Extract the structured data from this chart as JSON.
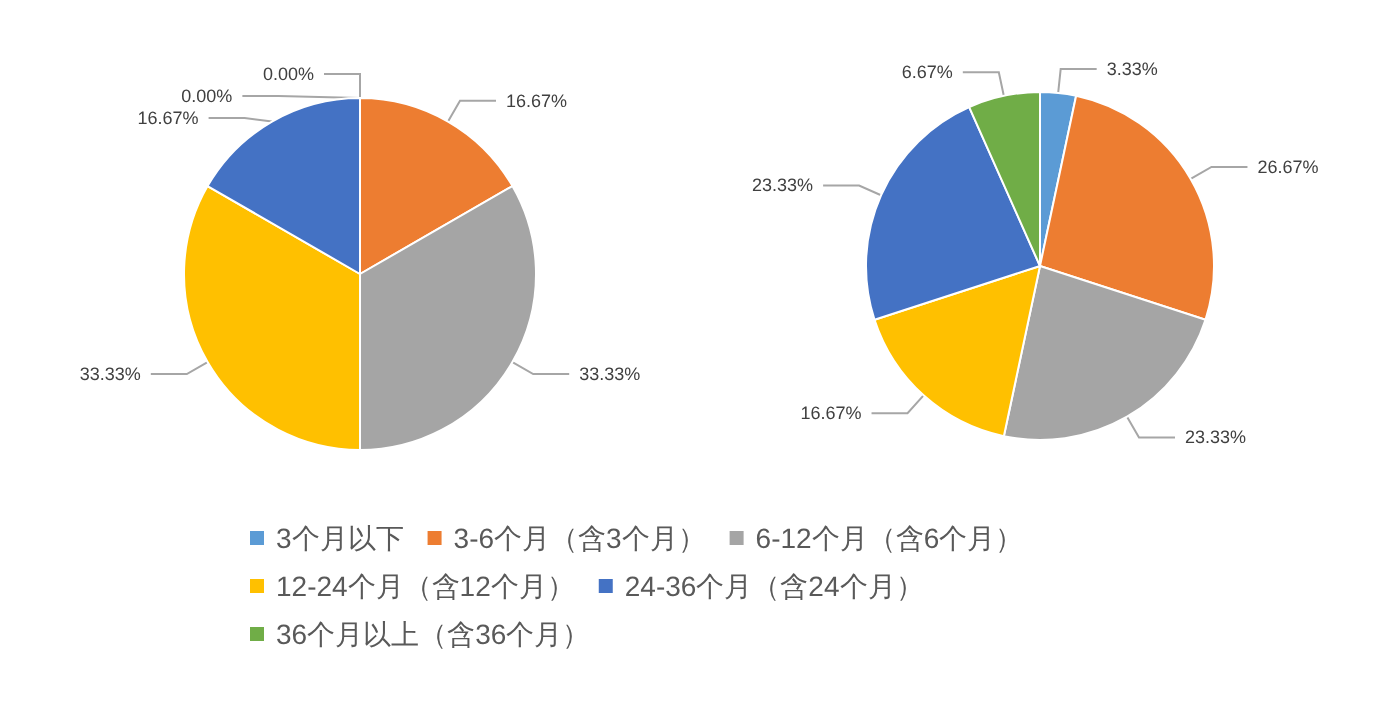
{
  "chart_data": {
    "type": "pie",
    "categories": [
      "3个月以下",
      "3-6个月（含3个月）",
      "6-12个月（含6个月）",
      "12-24个月（含12个月）",
      "24-36个月（含24个月）",
      "36个月以上（含36个月）"
    ],
    "colors": [
      "#5b9bd5",
      "#ed7d31",
      "#a5a5a5",
      "#ffc000",
      "#4472c4",
      "#70ad47"
    ],
    "legend": "bottom",
    "series": [
      {
        "values": [
          0,
          16.67,
          33.33,
          33.33,
          16.67,
          0
        ],
        "value_labels": [
          "0.00%",
          "16.67%",
          "33.33%",
          "33.33%",
          "16.67%",
          "0.00%"
        ]
      },
      {
        "values": [
          3.33,
          26.67,
          23.33,
          16.67,
          23.33,
          6.67
        ],
        "value_labels": [
          "3.33%",
          "26.67%",
          "23.33%",
          "16.67%",
          "23.33%",
          "6.67%"
        ]
      }
    ]
  }
}
